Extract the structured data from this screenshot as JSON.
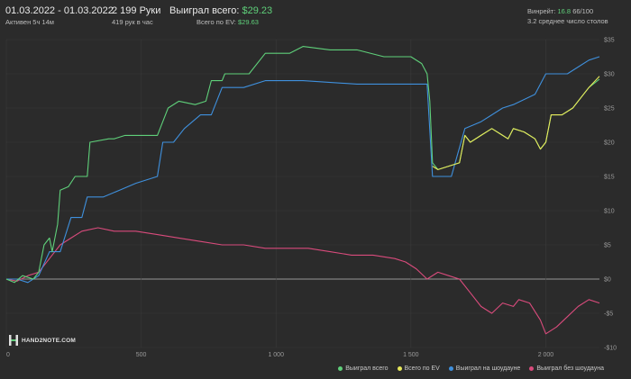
{
  "header": {
    "date_range": "01.03.2022 - 01.03.2022",
    "active": "Активен 5ч 14м",
    "hands": "2 199 Руки",
    "hands_rate": "419 рук в час",
    "won_total_label": "Выиграл всего:",
    "won_total_value": "$29.23",
    "ev_total_label": "Всего по EV:",
    "ev_total_value": "$29.63",
    "winrate_label": "Винрейт:",
    "winrate_value": "16.8",
    "winrate_suffix": "66/100",
    "tables_avg": "3.2 среднее число столов"
  },
  "brand": {
    "text": "HAND2NOTE.COM"
  },
  "colors": {
    "won": "#5fd07a",
    "ev": "#e6e85a",
    "showdown": "#3f90dd",
    "non_showdown": "#d94b7c",
    "background": "#2b2b2b",
    "grid": "#3a3a3a"
  },
  "chart_data": {
    "type": "line",
    "xlim": [
      0,
      2199
    ],
    "ylim": [
      -10,
      35
    ],
    "x_ticks": [
      0,
      500,
      1000,
      1500,
      2000
    ],
    "x_tick_labels": [
      "0",
      "500",
      "1 000",
      "1 500",
      "2 000"
    ],
    "y_ticks": [
      -10,
      -5,
      0,
      5,
      10,
      15,
      20,
      25,
      30,
      35
    ],
    "y_tick_labels": [
      "-$10",
      "-$5",
      "$0",
      "$5",
      "$10",
      "$15",
      "$20",
      "$25",
      "$30",
      "$35"
    ],
    "legend_position": "bottom-right",
    "series": [
      {
        "name": "Выиграл всего",
        "color": "#5fd07a",
        "points": [
          [
            0,
            0
          ],
          [
            30,
            -0.5
          ],
          [
            60,
            0.5
          ],
          [
            100,
            0
          ],
          [
            120,
            1
          ],
          [
            140,
            5
          ],
          [
            160,
            6
          ],
          [
            170,
            4
          ],
          [
            190,
            8
          ],
          [
            200,
            13
          ],
          [
            230,
            13.5
          ],
          [
            255,
            15
          ],
          [
            300,
            15
          ],
          [
            310,
            20
          ],
          [
            380,
            20.5
          ],
          [
            400,
            20.5
          ],
          [
            440,
            21
          ],
          [
            520,
            21
          ],
          [
            560,
            21
          ],
          [
            600,
            25
          ],
          [
            640,
            26
          ],
          [
            700,
            25.5
          ],
          [
            740,
            26
          ],
          [
            760,
            29
          ],
          [
            800,
            29
          ],
          [
            810,
            30
          ],
          [
            900,
            30
          ],
          [
            960,
            33
          ],
          [
            1050,
            33
          ],
          [
            1100,
            34
          ],
          [
            1200,
            33.5
          ],
          [
            1300,
            33.5
          ],
          [
            1400,
            32.5
          ],
          [
            1500,
            32.5
          ],
          [
            1540,
            31.5
          ],
          [
            1560,
            30
          ],
          [
            1570,
            26
          ],
          [
            1580,
            17
          ],
          [
            1600,
            16
          ],
          [
            1640,
            16.5
          ],
          [
            1680,
            17
          ],
          [
            1700,
            21
          ],
          [
            1720,
            20
          ],
          [
            1760,
            21
          ],
          [
            1800,
            22
          ],
          [
            1840,
            21
          ],
          [
            1860,
            20.5
          ],
          [
            1880,
            22
          ],
          [
            1920,
            21.5
          ],
          [
            1960,
            20.5
          ],
          [
            1980,
            19
          ],
          [
            2000,
            20
          ],
          [
            2020,
            24
          ],
          [
            2060,
            24
          ],
          [
            2100,
            25
          ],
          [
            2140,
            27
          ],
          [
            2160,
            28
          ],
          [
            2199,
            29.23
          ]
        ]
      },
      {
        "name": "Всего по EV",
        "color": "#e6e85a",
        "points": [
          [
            1580,
            16.5
          ],
          [
            1600,
            16
          ],
          [
            1640,
            16.5
          ],
          [
            1680,
            17
          ],
          [
            1700,
            21
          ],
          [
            1720,
            20
          ],
          [
            1760,
            21
          ],
          [
            1800,
            22
          ],
          [
            1840,
            21
          ],
          [
            1860,
            20.5
          ],
          [
            1880,
            22
          ],
          [
            1920,
            21.5
          ],
          [
            1960,
            20.5
          ],
          [
            1980,
            19
          ],
          [
            2000,
            20
          ],
          [
            2020,
            24
          ],
          [
            2060,
            24
          ],
          [
            2100,
            25
          ],
          [
            2140,
            27
          ],
          [
            2160,
            28
          ],
          [
            2199,
            29.63
          ]
        ]
      },
      {
        "name": "Выиграл на шоудауне",
        "color": "#3f90dd",
        "points": [
          [
            0,
            0
          ],
          [
            40,
            0
          ],
          [
            80,
            -0.5
          ],
          [
            120,
            0.5
          ],
          [
            160,
            4
          ],
          [
            200,
            4
          ],
          [
            240,
            9
          ],
          [
            280,
            9
          ],
          [
            300,
            12
          ],
          [
            360,
            12
          ],
          [
            420,
            13
          ],
          [
            480,
            14
          ],
          [
            560,
            15
          ],
          [
            580,
            20
          ],
          [
            620,
            20
          ],
          [
            660,
            22
          ],
          [
            720,
            24
          ],
          [
            760,
            24
          ],
          [
            800,
            28
          ],
          [
            880,
            28
          ],
          [
            960,
            29
          ],
          [
            1100,
            29
          ],
          [
            1300,
            28.5
          ],
          [
            1560,
            28.5
          ],
          [
            1580,
            15
          ],
          [
            1650,
            15
          ],
          [
            1700,
            22
          ],
          [
            1760,
            23
          ],
          [
            1800,
            24
          ],
          [
            1840,
            25
          ],
          [
            1880,
            25.5
          ],
          [
            1960,
            27
          ],
          [
            2000,
            30
          ],
          [
            2080,
            30
          ],
          [
            2120,
            31
          ],
          [
            2160,
            32
          ],
          [
            2199,
            32.5
          ]
        ]
      },
      {
        "name": "Выиграл без шоудауна",
        "color": "#d94b7c",
        "points": [
          [
            0,
            0
          ],
          [
            40,
            -0.3
          ],
          [
            80,
            0.5
          ],
          [
            120,
            1
          ],
          [
            160,
            3
          ],
          [
            200,
            5
          ],
          [
            240,
            6
          ],
          [
            280,
            7
          ],
          [
            340,
            7.5
          ],
          [
            400,
            7
          ],
          [
            480,
            7
          ],
          [
            560,
            6.5
          ],
          [
            640,
            6
          ],
          [
            720,
            5.5
          ],
          [
            800,
            5
          ],
          [
            880,
            5
          ],
          [
            960,
            4.5
          ],
          [
            1040,
            4.5
          ],
          [
            1120,
            4.5
          ],
          [
            1200,
            4
          ],
          [
            1280,
            3.5
          ],
          [
            1360,
            3.5
          ],
          [
            1440,
            3
          ],
          [
            1480,
            2.5
          ],
          [
            1520,
            1.5
          ],
          [
            1560,
            0
          ],
          [
            1600,
            1
          ],
          [
            1640,
            0.5
          ],
          [
            1680,
            0
          ],
          [
            1720,
            -2
          ],
          [
            1760,
            -4
          ],
          [
            1800,
            -5
          ],
          [
            1840,
            -3.5
          ],
          [
            1880,
            -4
          ],
          [
            1900,
            -3
          ],
          [
            1940,
            -3.5
          ],
          [
            1980,
            -6
          ],
          [
            2000,
            -8
          ],
          [
            2040,
            -7
          ],
          [
            2080,
            -5.5
          ],
          [
            2120,
            -4
          ],
          [
            2160,
            -3
          ],
          [
            2199,
            -3.5
          ]
        ]
      }
    ]
  }
}
